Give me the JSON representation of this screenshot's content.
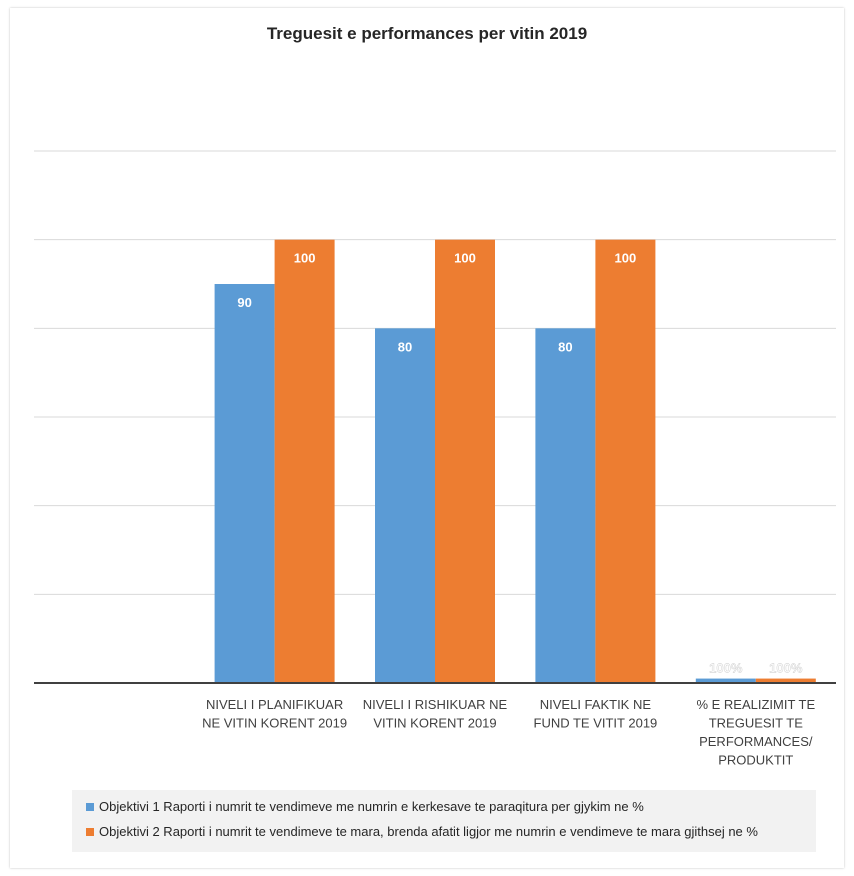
{
  "chart_data": {
    "type": "bar",
    "title": "Treguesit e performances per vitin 2019",
    "categories": [
      [
        "NIVELI I PLANIFIKUAR",
        "NE VITIN KORENT 2019"
      ],
      [
        "NIVELI I RISHIKUAR NE",
        "VITIN KORENT 2019"
      ],
      [
        "NIVELI FAKTIK   NE",
        "FUND TE     VITIT 2019"
      ],
      [
        "% E REALIZIMIT TE",
        "TREGUESIT TE",
        "PERFORMANCES/",
        "PRODUKTIT"
      ]
    ],
    "series": [
      {
        "name": "Objektivi 1 Raporti i numrit te vendimeve me numrin e kerkesave te paraqitura per gjykim ne %",
        "color": "#5b9bd5",
        "values": [
          90,
          80,
          80,
          1
        ],
        "labels": [
          "90",
          "80",
          "80",
          "100%"
        ]
      },
      {
        "name": "Objektivi 2 Raporti i numrit te vendimeve te mara, brenda afatit ligjor me numrin e vendimeve te mara gjithsej ne %",
        "color": "#ed7d31",
        "values": [
          100,
          100,
          100,
          1
        ],
        "labels": [
          "100",
          "100",
          "100",
          "100%"
        ]
      }
    ],
    "ylim": [
      0,
      120
    ],
    "gridlines": true,
    "legend_position": "bottom"
  }
}
